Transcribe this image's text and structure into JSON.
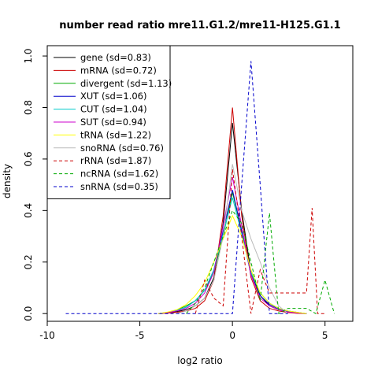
{
  "chart_data": {
    "type": "line",
    "title": "number read ratio mre11.G1.2/mre11-H125.G1.1",
    "xlabel": "log2 ratio",
    "ylabel": "density",
    "xlim": [
      -10,
      6.5
    ],
    "ylim": [
      -0.03,
      1.04
    ],
    "xticks": [
      -10,
      -5,
      0,
      5
    ],
    "yticks": [
      0.0,
      0.2,
      0.4,
      0.6,
      0.8,
      1.0
    ],
    "grid": false,
    "legend_position": "top-left",
    "series": [
      {
        "name": "gene (sd=0.83)",
        "color": "#000000",
        "dash": "solid",
        "x": [
          -4,
          -3.5,
          -3,
          -2.5,
          -2,
          -1.5,
          -1,
          -0.5,
          0,
          0.5,
          1,
          1.5,
          2,
          2.5,
          3,
          3.5,
          4
        ],
        "y": [
          0,
          0.003,
          0.008,
          0.015,
          0.03,
          0.06,
          0.14,
          0.35,
          0.74,
          0.4,
          0.16,
          0.07,
          0.03,
          0.015,
          0.006,
          0.002,
          0
        ]
      },
      {
        "name": "mRNA (sd=0.72)",
        "color": "#cc0000",
        "dash": "solid",
        "x": [
          -4,
          -3.5,
          -3,
          -2.5,
          -2,
          -1.5,
          -1,
          -0.5,
          0,
          0.5,
          1,
          1.5,
          2,
          2.5,
          3,
          3.5,
          4
        ],
        "y": [
          0,
          0.002,
          0.005,
          0.01,
          0.02,
          0.05,
          0.13,
          0.38,
          0.8,
          0.38,
          0.14,
          0.05,
          0.02,
          0.01,
          0.004,
          0.001,
          0
        ]
      },
      {
        "name": "divergent (sd=1.13)",
        "color": "#00aa00",
        "dash": "solid",
        "x": [
          -4,
          -3.5,
          -3,
          -2.5,
          -2,
          -1.5,
          -1,
          -0.5,
          0,
          0.5,
          1,
          1.5,
          2,
          2.5,
          3,
          3.5,
          4
        ],
        "y": [
          0,
          0.005,
          0.015,
          0.03,
          0.05,
          0.09,
          0.16,
          0.3,
          0.47,
          0.32,
          0.16,
          0.08,
          0.04,
          0.02,
          0.01,
          0.005,
          0
        ]
      },
      {
        "name": "XUT (sd=1.06)",
        "color": "#0000cc",
        "dash": "solid",
        "x": [
          -4,
          -3.5,
          -3,
          -2.5,
          -2,
          -1.5,
          -1,
          -0.5,
          0,
          0.5,
          1,
          1.5,
          2,
          2.5,
          3,
          3.5,
          4
        ],
        "y": [
          0,
          0.005,
          0.012,
          0.025,
          0.05,
          0.09,
          0.17,
          0.32,
          0.48,
          0.32,
          0.15,
          0.07,
          0.035,
          0.018,
          0.008,
          0.004,
          0
        ]
      },
      {
        "name": "CUT (sd=1.04)",
        "color": "#00cccc",
        "dash": "solid",
        "x": [
          -4,
          -3.5,
          -3,
          -2.5,
          -2,
          -1.5,
          -1,
          -0.5,
          0,
          0.5,
          1,
          1.5,
          2,
          2.5,
          3,
          3.5,
          4
        ],
        "y": [
          0,
          0.005,
          0.012,
          0.025,
          0.05,
          0.09,
          0.17,
          0.31,
          0.45,
          0.31,
          0.16,
          0.08,
          0.04,
          0.02,
          0.01,
          0.004,
          0
        ]
      },
      {
        "name": "SUT (sd=0.94)",
        "color": "#cc00cc",
        "dash": "solid",
        "x": [
          -4,
          -3.5,
          -3,
          -2.5,
          -2,
          -1.5,
          -1,
          -0.5,
          0,
          0.5,
          1,
          1.5,
          2,
          2.5,
          3,
          3.5,
          4
        ],
        "y": [
          0,
          0.004,
          0.01,
          0.02,
          0.04,
          0.08,
          0.16,
          0.34,
          0.53,
          0.34,
          0.15,
          0.06,
          0.03,
          0.015,
          0.006,
          0.003,
          0
        ]
      },
      {
        "name": "tRNA (sd=1.22)",
        "color": "#ffff00",
        "dash": "solid",
        "x": [
          -4,
          -3.5,
          -3,
          -2.5,
          -2,
          -1.5,
          -1,
          -0.5,
          0,
          0.5,
          1,
          1.5,
          2,
          2.5,
          3,
          3.5,
          4
        ],
        "y": [
          0,
          0.006,
          0.015,
          0.035,
          0.07,
          0.12,
          0.2,
          0.29,
          0.38,
          0.3,
          0.17,
          0.08,
          0.04,
          0.02,
          0.01,
          0.005,
          0
        ]
      },
      {
        "name": "snoRNA (sd=0.76)",
        "color": "#bbbbbb",
        "dash": "solid",
        "x": [
          -3,
          -2.5,
          -2,
          -1.5,
          -1,
          -0.5,
          0,
          0.5,
          1,
          1.5,
          2,
          2.5,
          3
        ],
        "y": [
          0,
          0.01,
          0.03,
          0.06,
          0.13,
          0.3,
          0.58,
          0.4,
          0.29,
          0.2,
          0.1,
          0.03,
          0
        ]
      },
      {
        "name": "rRNA (sd=1.87)",
        "color": "#cc0000",
        "dash": "dashed",
        "x": [
          -2,
          -1.5,
          -1,
          -0.5,
          0,
          0.5,
          1,
          1.5,
          2,
          2.5,
          3,
          3.5,
          4,
          4.3,
          4.6,
          5
        ],
        "y": [
          0,
          0.13,
          0.06,
          0.03,
          0.56,
          0.3,
          0.0,
          0.17,
          0.08,
          0.08,
          0.08,
          0.08,
          0.08,
          0.41,
          0.0,
          0.0
        ]
      },
      {
        "name": "ncRNA (sd=1.62)",
        "color": "#00aa00",
        "dash": "dashed",
        "x": [
          -2.5,
          -2,
          -1.5,
          -1,
          -0.5,
          0,
          0.5,
          1,
          1.5,
          2,
          2.5,
          3,
          3.5,
          4,
          4.5,
          5,
          5.5
        ],
        "y": [
          0,
          0.04,
          0.1,
          0.2,
          0.3,
          0.4,
          0.35,
          0.2,
          0.05,
          0.39,
          0.0,
          0.02,
          0.02,
          0.02,
          0.0,
          0.13,
          0.0
        ]
      },
      {
        "name": "snRNA (sd=0.35)",
        "color": "#0000cc",
        "dash": "dashed",
        "x": [
          -9,
          -2,
          -1,
          -0.5,
          0,
          0.5,
          1,
          1.5,
          2,
          3
        ],
        "y": [
          0,
          0,
          0,
          0,
          0,
          0.5,
          0.98,
          0.5,
          0,
          0
        ]
      }
    ]
  }
}
